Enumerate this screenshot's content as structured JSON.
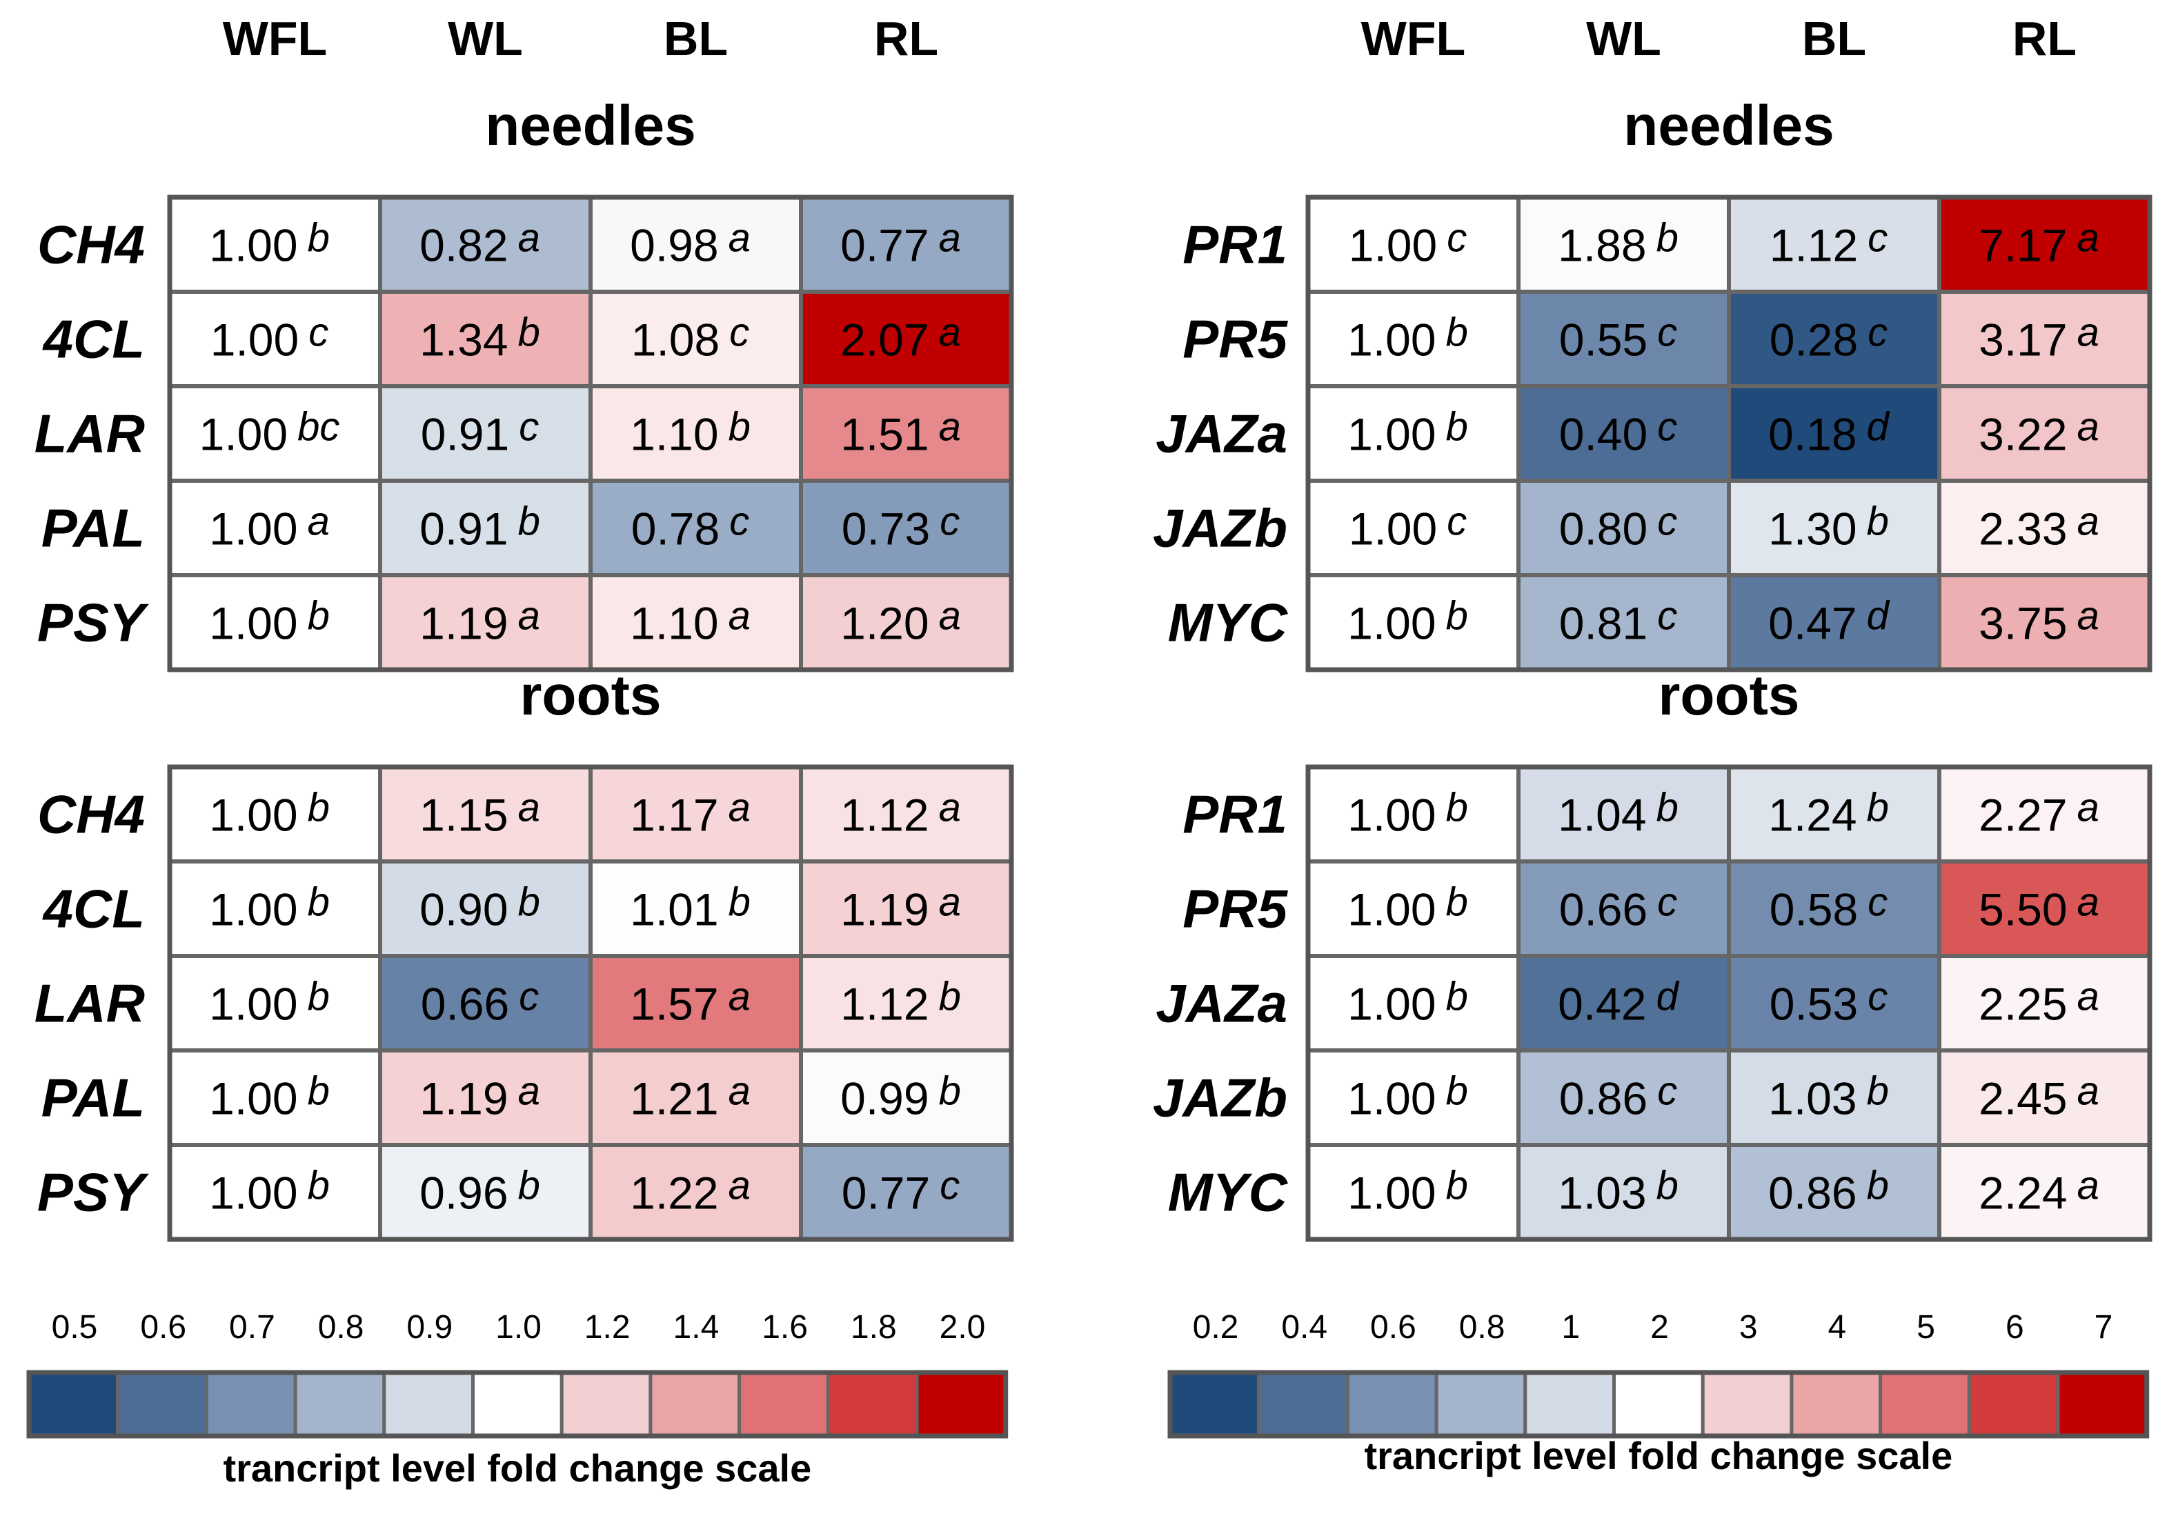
{
  "chart_data": [
    {
      "type": "heatmap",
      "columns": [
        "WFL",
        "WL",
        "BL",
        "RL"
      ],
      "colorbar": {
        "ticks": [
          "0.5",
          "0.6",
          "0.7",
          "0.8",
          "0.9",
          "1.0",
          "1.2",
          "1.4",
          "1.6",
          "1.8",
          "2.0"
        ],
        "title": "trancript level fold change scale",
        "bin_colors": [
          "#1f4a7a",
          "#4d6d96",
          "#7890b2",
          "#a3b4cc",
          "#d3dbe6",
          "#ffffff",
          "#f4cfd1",
          "#eba5a7",
          "#e07275",
          "#d33b3b",
          "#c00000"
        ]
      },
      "sections": [
        {
          "title": "needles",
          "rows": [
            {
              "gene": "CH4",
              "values": [
                1.0,
                0.82,
                0.98,
                0.77
              ],
              "labels": [
                "1.00",
                "0.82",
                "0.98",
                "0.77"
              ],
              "sig": [
                "b",
                "a",
                "a",
                "a"
              ]
            },
            {
              "gene": "4CL",
              "values": [
                1.0,
                1.34,
                1.08,
                2.07
              ],
              "labels": [
                "1.00",
                "1.34",
                "1.08",
                "2.07"
              ],
              "sig": [
                "c",
                "b",
                "c",
                "a"
              ]
            },
            {
              "gene": "LAR",
              "values": [
                1.0,
                0.91,
                1.1,
                1.51
              ],
              "labels": [
                "1.00",
                "0.91",
                "1.10",
                "1.51"
              ],
              "sig": [
                "bc",
                "c",
                "b",
                "a"
              ]
            },
            {
              "gene": "PAL",
              "values": [
                1.0,
                0.91,
                0.78,
                0.73
              ],
              "labels": [
                "1.00",
                "0.91",
                "0.78",
                "0.73"
              ],
              "sig": [
                "a",
                "b",
                "c",
                "c"
              ]
            },
            {
              "gene": "PSY",
              "values": [
                1.0,
                1.19,
                1.1,
                1.2
              ],
              "labels": [
                "1.00",
                "1.19",
                "1.10",
                "1.20"
              ],
              "sig": [
                "b",
                "a",
                "a",
                "a"
              ]
            }
          ]
        },
        {
          "title": "roots",
          "rows": [
            {
              "gene": "CH4",
              "values": [
                1.0,
                1.15,
                1.17,
                1.12
              ],
              "labels": [
                "1.00",
                "1.15",
                "1.17",
                "1.12"
              ],
              "sig": [
                "b",
                "a",
                "a",
                "a"
              ]
            },
            {
              "gene": "4CL",
              "values": [
                1.0,
                0.9,
                1.01,
                1.19
              ],
              "labels": [
                "1.00",
                "0.90",
                "1.01",
                "1.19"
              ],
              "sig": [
                "b",
                "b",
                "b",
                "a"
              ]
            },
            {
              "gene": "LAR",
              "values": [
                1.0,
                0.66,
                1.57,
                1.12
              ],
              "labels": [
                "1.00",
                "0.66",
                "1.57",
                "1.12"
              ],
              "sig": [
                "b",
                "c",
                "a",
                "b"
              ]
            },
            {
              "gene": "PAL",
              "values": [
                1.0,
                1.19,
                1.21,
                0.99
              ],
              "labels": [
                "1.00",
                "1.19",
                "1.21",
                "0.99"
              ],
              "sig": [
                "b",
                "a",
                "a",
                "b"
              ]
            },
            {
              "gene": "PSY",
              "values": [
                1.0,
                0.96,
                1.22,
                0.77
              ],
              "labels": [
                "1.00",
                "0.96",
                "1.22",
                "0.77"
              ],
              "sig": [
                "b",
                "b",
                "a",
                "c"
              ]
            }
          ]
        }
      ]
    },
    {
      "type": "heatmap",
      "columns": [
        "WFL",
        "WL",
        "BL",
        "RL"
      ],
      "colorbar": {
        "ticks": [
          "0.2",
          "0.4",
          "0.6",
          "0.8",
          "1",
          "2",
          "3",
          "4",
          "5",
          "6",
          "7"
        ],
        "title": "trancript level fold change scale",
        "bin_colors": [
          "#1f4a7a",
          "#4d6d96",
          "#7890b2",
          "#a3b4cc",
          "#d3dbe6",
          "#ffffff",
          "#f4cfd1",
          "#eba5a7",
          "#e07275",
          "#d33b3b",
          "#c00000"
        ]
      },
      "sections": [
        {
          "title": "needles",
          "rows": [
            {
              "gene": "PR1",
              "values": [
                1.0,
                1.88,
                1.12,
                7.17
              ],
              "labels": [
                "1.00",
                "1.88",
                "1.12",
                "7.17"
              ],
              "sig": [
                "c",
                "b",
                "c",
                "a"
              ]
            },
            {
              "gene": "PR5",
              "values": [
                1.0,
                0.55,
                0.28,
                3.17
              ],
              "labels": [
                "1.00",
                "0.55",
                "0.28",
                "3.17"
              ],
              "sig": [
                "b",
                "c",
                "c",
                "a"
              ]
            },
            {
              "gene": "JAZa",
              "values": [
                1.0,
                0.4,
                0.18,
                3.22
              ],
              "labels": [
                "1.00",
                "0.40",
                "0.18",
                "3.22"
              ],
              "sig": [
                "b",
                "c",
                "d",
                "a"
              ]
            },
            {
              "gene": "JAZb",
              "values": [
                1.0,
                0.8,
                1.3,
                2.33
              ],
              "labels": [
                "1.00",
                "0.80",
                "1.30",
                "2.33"
              ],
              "sig": [
                "c",
                "c",
                "b",
                "a"
              ]
            },
            {
              "gene": "MYC",
              "values": [
                1.0,
                0.81,
                0.47,
                3.75
              ],
              "labels": [
                "1.00",
                "0.81",
                "0.47",
                "3.75"
              ],
              "sig": [
                "b",
                "c",
                "d",
                "a"
              ]
            }
          ]
        },
        {
          "title": "roots",
          "rows": [
            {
              "gene": "PR1",
              "values": [
                1.0,
                1.04,
                1.24,
                2.27
              ],
              "labels": [
                "1.00",
                "1.04",
                "1.24",
                "2.27"
              ],
              "sig": [
                "b",
                "b",
                "b",
                "a"
              ]
            },
            {
              "gene": "PR5",
              "values": [
                1.0,
                0.66,
                0.58,
                5.5
              ],
              "labels": [
                "1.00",
                "0.66",
                "0.58",
                "5.50"
              ],
              "sig": [
                "b",
                "c",
                "c",
                "a"
              ]
            },
            {
              "gene": "JAZa",
              "values": [
                1.0,
                0.42,
                0.53,
                2.25
              ],
              "labels": [
                "1.00",
                "0.42",
                "0.53",
                "2.25"
              ],
              "sig": [
                "b",
                "d",
                "c",
                "a"
              ]
            },
            {
              "gene": "JAZb",
              "values": [
                1.0,
                0.86,
                1.03,
                2.45
              ],
              "labels": [
                "1.00",
                "0.86",
                "1.03",
                "2.45"
              ],
              "sig": [
                "b",
                "c",
                "b",
                "a"
              ]
            },
            {
              "gene": "MYC",
              "values": [
                1.0,
                1.03,
                0.86,
                2.24
              ],
              "labels": [
                "1.00",
                "1.03",
                "0.86",
                "2.24"
              ],
              "sig": [
                "b",
                "b",
                "b",
                "a"
              ]
            }
          ]
        }
      ]
    }
  ]
}
